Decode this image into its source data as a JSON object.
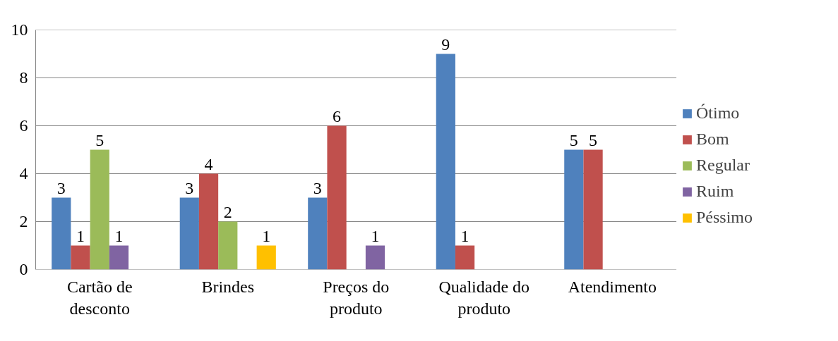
{
  "chart_data": {
    "type": "bar",
    "categories": [
      "Cartão de desconto",
      "Brindes",
      "Preços do produto",
      "Qualidade do produto",
      "Atendimento"
    ],
    "series": [
      {
        "name": "Ótimo",
        "color": "#4f81bd",
        "values": [
          3,
          3,
          3,
          9,
          5
        ]
      },
      {
        "name": "Bom",
        "color": "#c0504d",
        "values": [
          1,
          4,
          6,
          1,
          5
        ]
      },
      {
        "name": "Regular",
        "color": "#9bbb59",
        "values": [
          5,
          2,
          null,
          null,
          null
        ]
      },
      {
        "name": "Ruim",
        "color": "#8064a2",
        "values": [
          1,
          null,
          1,
          null,
          null
        ]
      },
      {
        "name": "Péssimo",
        "color": "#ffc000",
        "values": [
          null,
          1,
          null,
          null,
          null
        ]
      }
    ],
    "ylim": [
      0,
      10
    ],
    "yticks": [
      0,
      2,
      4,
      6,
      8,
      10
    ],
    "grid": "y",
    "legend": "right",
    "data_labels": true
  }
}
